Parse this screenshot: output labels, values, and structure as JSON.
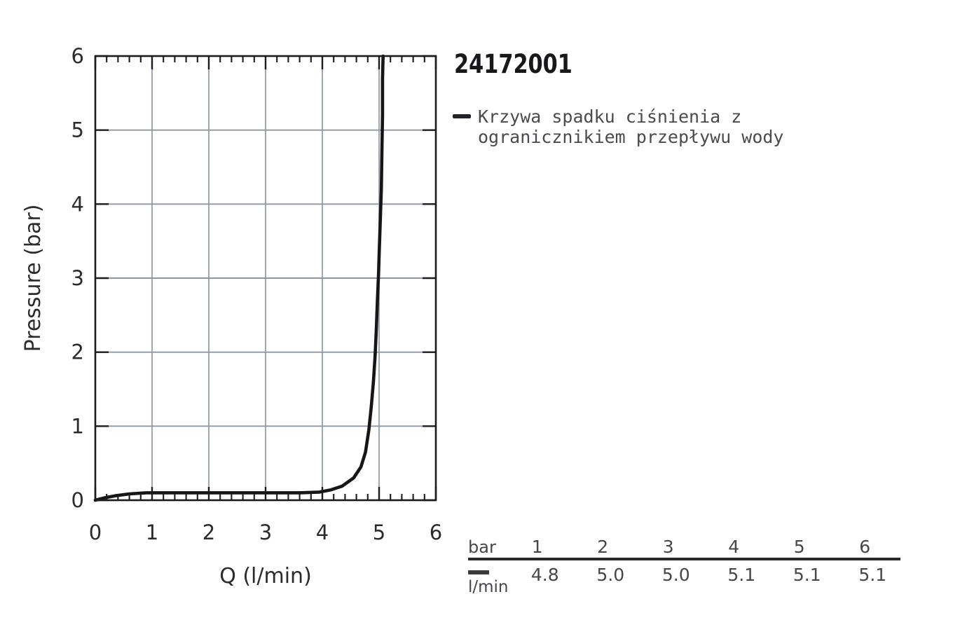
{
  "header": {
    "product_number": "24172001"
  },
  "legend": {
    "marker_icon": "line-swatch",
    "line1": "Krzywa spadku ciśnienia z",
    "line2": "ogranicznikiem przepływu wody"
  },
  "chart_data": {
    "type": "line",
    "title": "24172001",
    "xlabel": "Q (l/min)",
    "ylabel": "Pressure (bar)",
    "xlim": [
      0,
      6
    ],
    "ylim": [
      0,
      6
    ],
    "x_ticks": [
      "0",
      "1",
      "2",
      "3",
      "4",
      "5",
      "6"
    ],
    "y_ticks": [
      "0",
      "1",
      "2",
      "3",
      "4",
      "5",
      "6"
    ],
    "minor_tick_step": 0.2,
    "grid": true,
    "legend_position": "right-of-plot",
    "series": [
      {
        "name": "Krzywa spadku ciśnienia z ogranicznikiem przepływu wody",
        "color": "#161616",
        "points": [
          [
            0,
            0
          ],
          [
            0.15,
            0.03
          ],
          [
            0.35,
            0.06
          ],
          [
            0.6,
            0.085
          ],
          [
            0.9,
            0.1
          ],
          [
            1.5,
            0.1
          ],
          [
            2.2,
            0.1
          ],
          [
            3.0,
            0.1
          ],
          [
            3.6,
            0.1
          ],
          [
            3.95,
            0.11
          ],
          [
            4.15,
            0.14
          ],
          [
            4.35,
            0.19
          ],
          [
            4.55,
            0.3
          ],
          [
            4.68,
            0.45
          ],
          [
            4.76,
            0.65
          ],
          [
            4.82,
            0.95
          ],
          [
            4.86,
            1.25
          ],
          [
            4.9,
            1.6
          ],
          [
            4.93,
            1.95
          ],
          [
            4.95,
            2.3
          ],
          [
            4.97,
            2.7
          ],
          [
            4.99,
            3.05
          ],
          [
            5.0,
            3.3
          ],
          [
            5.02,
            3.75
          ],
          [
            5.04,
            4.2
          ],
          [
            5.05,
            4.7
          ],
          [
            5.06,
            5.2
          ],
          [
            5.06,
            5.7
          ],
          [
            5.07,
            6.0
          ]
        ]
      }
    ]
  },
  "flow_table": {
    "pressure_unit_label": "bar",
    "flow_unit_label": "l/min",
    "pressure_values": [
      "1",
      "2",
      "3",
      "4",
      "5",
      "6"
    ],
    "flow_values": [
      "4.8",
      "5.0",
      "5.0",
      "5.1",
      "5.1",
      "5.1"
    ]
  },
  "colors": {
    "grid": "#8f98a2",
    "axis": "#1c1c1e",
    "curve": "#161616",
    "text": "#2b2b2e",
    "table_text": "#46464c"
  }
}
